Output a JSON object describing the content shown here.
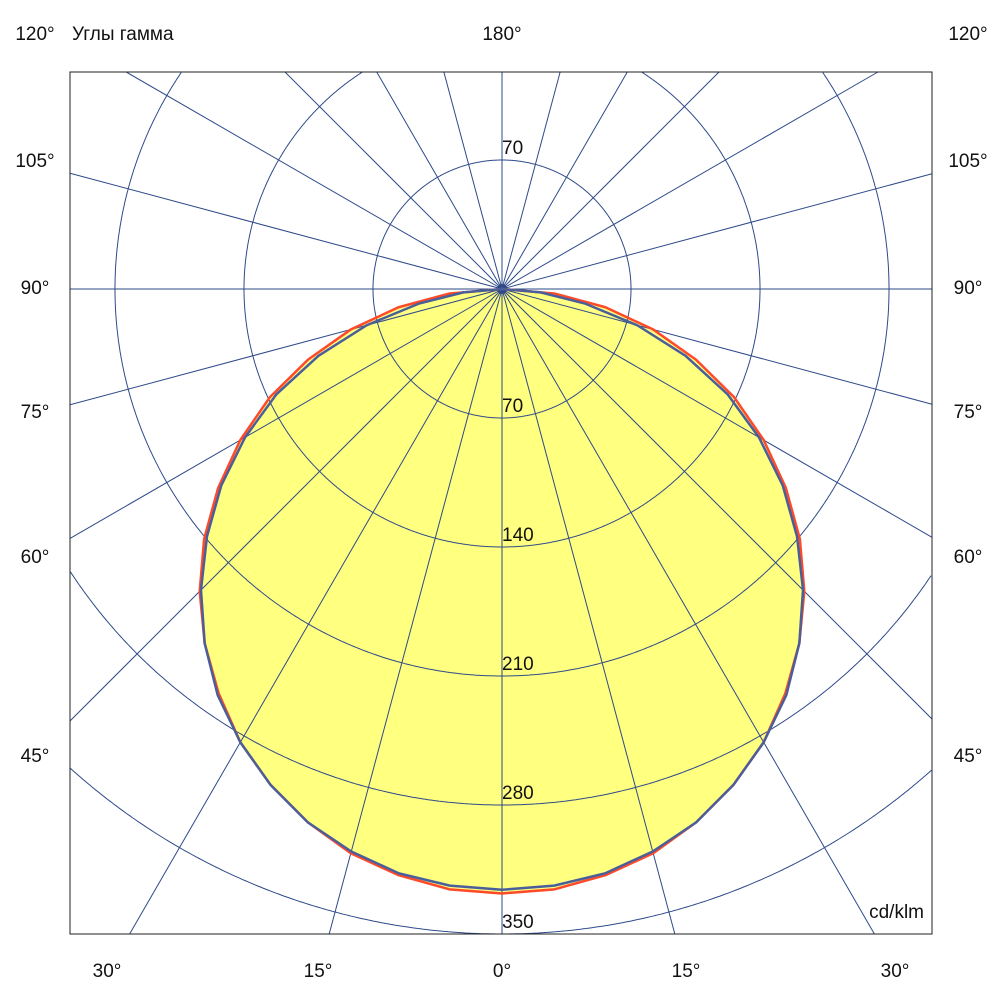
{
  "chart_data": {
    "type": "polar",
    "title": "Углы гамма",
    "unit": "cd/klm",
    "radial_ticks": [
      70,
      140,
      210,
      280,
      350
    ],
    "radial_max": 350,
    "grid": true,
    "top_label": "180°",
    "side_labels": [
      "120°",
      "105°",
      "90°",
      "75°",
      "60°",
      "45°"
    ],
    "bottom_labels": [
      "30°",
      "15°",
      "0°",
      "15°",
      "30°"
    ],
    "gamma": [
      0,
      5,
      10,
      15,
      20,
      25,
      30,
      35,
      40,
      45,
      50,
      55,
      60,
      65,
      70,
      75,
      80,
      85,
      90
    ],
    "series": [
      {
        "color": "#ff4a2a",
        "values": [
          328,
          327,
          323,
          317,
          308,
          297,
          284,
          268,
          251,
          232,
          211,
          188,
          164,
          139,
          112,
          85,
          57,
          29,
          0
        ]
      },
      {
        "color": "#4a5f9a",
        "values": [
          326,
          325,
          322,
          316,
          308,
          297,
          284,
          269,
          251,
          231,
          209,
          186,
          161,
          135,
          106,
          76,
          46,
          21,
          0
        ]
      }
    ],
    "colors": {
      "fill": "#ffff80",
      "grid": "#2e4a8a"
    }
  }
}
